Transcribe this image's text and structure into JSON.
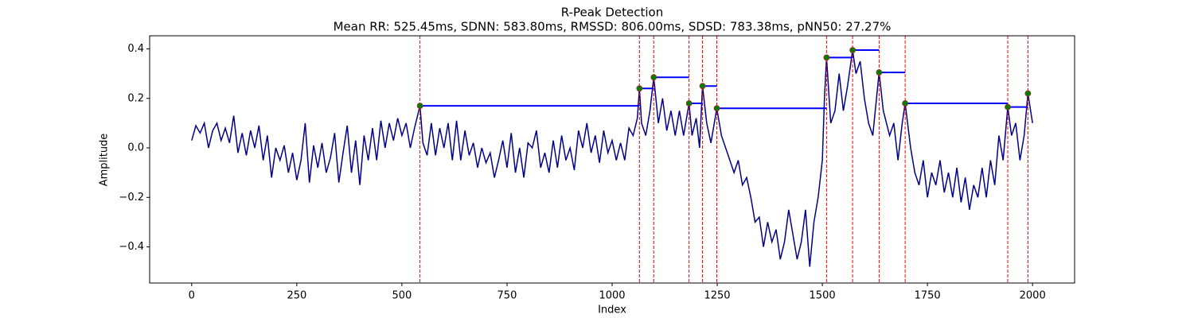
{
  "chart_data": {
    "type": "line",
    "title": "R-Peak Detection",
    "subtitle": "Mean RR: 525.45ms, SDNN: 583.80ms, RMSSD: 806.00ms, SDSD: 783.38ms, pNN50: 27.27%",
    "x_label": "Index",
    "y_label": "Amplitude",
    "xlim": [
      -100,
      2100
    ],
    "ylim": [
      -0.546,
      0.453
    ],
    "xticks": [
      0,
      250,
      500,
      750,
      1000,
      1250,
      1500,
      1750,
      2000
    ],
    "yticks": [
      {
        "value": -0.4,
        "label": "−0.4"
      },
      {
        "value": -0.2,
        "label": "−0.2"
      },
      {
        "value": 0,
        "label": "0.0"
      },
      0.2,
      0.4
    ],
    "signal": {
      "color": "#00008b",
      "x": [
        0,
        10,
        20,
        30,
        40,
        50,
        60,
        70,
        80,
        90,
        100,
        110,
        120,
        130,
        140,
        150,
        160,
        170,
        180,
        190,
        200,
        210,
        220,
        230,
        240,
        250,
        260,
        270,
        280,
        290,
        300,
        310,
        320,
        330,
        340,
        350,
        360,
        370,
        380,
        390,
        400,
        410,
        420,
        430,
        440,
        450,
        460,
        470,
        480,
        490,
        500,
        510,
        520,
        530,
        543,
        550,
        560,
        570,
        580,
        590,
        600,
        610,
        620,
        630,
        640,
        650,
        660,
        670,
        680,
        690,
        700,
        710,
        720,
        730,
        740,
        750,
        760,
        770,
        780,
        790,
        800,
        810,
        820,
        830,
        840,
        850,
        860,
        870,
        880,
        890,
        900,
        910,
        920,
        930,
        940,
        950,
        960,
        970,
        980,
        990,
        1000,
        1010,
        1020,
        1030,
        1040,
        1050,
        1060,
        1065,
        1070,
        1080,
        1090,
        1099,
        1110,
        1120,
        1130,
        1140,
        1150,
        1160,
        1170,
        1183,
        1190,
        1200,
        1208,
        1215,
        1225,
        1235,
        1249,
        1260,
        1270,
        1280,
        1290,
        1300,
        1310,
        1320,
        1330,
        1340,
        1350,
        1360,
        1370,
        1380,
        1390,
        1400,
        1410,
        1420,
        1430,
        1440,
        1450,
        1460,
        1470,
        1480,
        1490,
        1500,
        1505,
        1510,
        1520,
        1530,
        1540,
        1550,
        1560,
        1572,
        1580,
        1590,
        1600,
        1610,
        1620,
        1635,
        1645,
        1660,
        1670,
        1680,
        1690,
        1697,
        1710,
        1720,
        1730,
        1740,
        1750,
        1760,
        1770,
        1780,
        1790,
        1800,
        1810,
        1820,
        1830,
        1840,
        1850,
        1860,
        1870,
        1880,
        1890,
        1900,
        1910,
        1920,
        1930,
        1941,
        1950,
        1960,
        1970,
        1980,
        1989,
        2000
      ],
      "values": [
        0.03,
        0.09,
        0.06,
        0.1,
        0.0,
        0.07,
        0.1,
        0.03,
        0.08,
        0.02,
        0.13,
        -0.02,
        0.06,
        -0.03,
        0.07,
        0.0,
        0.09,
        -0.05,
        0.05,
        -0.12,
        0.0,
        -0.05,
        0.01,
        -0.1,
        -0.02,
        -0.13,
        -0.05,
        0.1,
        -0.14,
        0.01,
        -0.08,
        0.02,
        -0.1,
        -0.04,
        0.06,
        -0.14,
        -0.02,
        0.09,
        -0.1,
        0.03,
        -0.15,
        0.05,
        -0.05,
        0.08,
        -0.05,
        0.11,
        0.0,
        0.1,
        0.03,
        0.12,
        0.05,
        0.1,
        0.0,
        0.08,
        0.17,
        0.02,
        -0.03,
        0.1,
        -0.03,
        0.08,
        0.0,
        0.1,
        -0.05,
        0.11,
        -0.05,
        0.07,
        -0.03,
        0.02,
        -0.08,
        0.0,
        -0.06,
        -0.02,
        -0.12,
        -0.05,
        0.03,
        -0.08,
        0.06,
        -0.1,
        0.0,
        -0.12,
        0.02,
        0.0,
        0.07,
        -0.08,
        -0.02,
        -0.1,
        0.03,
        -0.08,
        0.05,
        -0.05,
        0.0,
        -0.09,
        0.07,
        0.0,
        0.1,
        -0.02,
        0.05,
        -0.06,
        0.07,
        -0.02,
        0.03,
        -0.05,
        0.02,
        -0.05,
        0.08,
        0.05,
        0.12,
        0.24,
        0.1,
        0.05,
        0.15,
        0.285,
        0.1,
        0.2,
        0.07,
        0.15,
        0.05,
        0.15,
        0.05,
        0.18,
        0.05,
        0.12,
        0.0,
        0.25,
        0.1,
        0.02,
        0.16,
        0.05,
        0.0,
        -0.05,
        -0.1,
        -0.05,
        -0.15,
        -0.12,
        -0.2,
        -0.3,
        -0.28,
        -0.4,
        -0.3,
        -0.38,
        -0.33,
        -0.45,
        -0.38,
        -0.25,
        -0.35,
        -0.45,
        -0.38,
        -0.25,
        -0.48,
        -0.3,
        -0.2,
        -0.05,
        0.2,
        0.365,
        0.1,
        0.15,
        0.3,
        0.15,
        0.25,
        0.395,
        0.3,
        0.35,
        0.2,
        0.1,
        0.05,
        0.305,
        0.15,
        0.05,
        0.1,
        -0.05,
        0.1,
        0.18,
        0.0,
        -0.1,
        -0.15,
        -0.05,
        -0.2,
        -0.1,
        -0.15,
        -0.05,
        -0.18,
        -0.1,
        -0.2,
        -0.08,
        -0.22,
        -0.12,
        -0.25,
        -0.15,
        -0.2,
        -0.08,
        -0.2,
        -0.05,
        -0.15,
        0.05,
        -0.05,
        0.165,
        0.05,
        0.1,
        -0.05,
        0.05,
        0.22,
        0.1
      ]
    },
    "peaks": {
      "color": "green",
      "edge_color": "#b22222",
      "line_color": "red",
      "rr_color": "blue",
      "x": [
        543,
        1065,
        1099,
        1183,
        1215,
        1249,
        1510,
        1572,
        1635,
        1697,
        1941,
        1989
      ],
      "values": [
        0.17,
        0.24,
        0.285,
        0.18,
        0.25,
        0.16,
        0.365,
        0.395,
        0.305,
        0.18,
        0.165,
        0.22
      ]
    }
  }
}
